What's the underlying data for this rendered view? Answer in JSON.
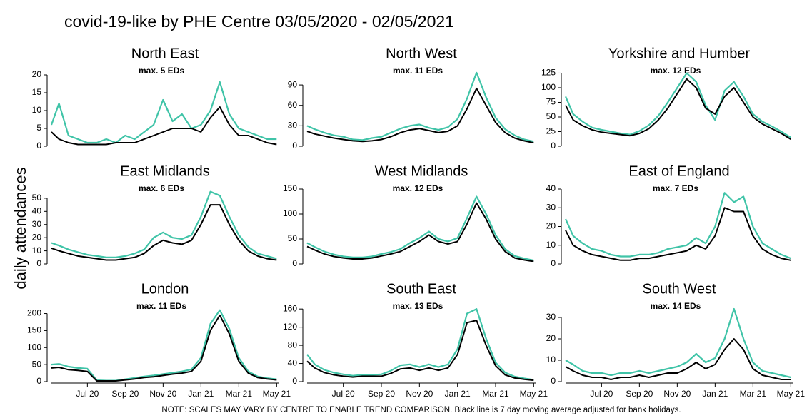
{
  "title": "covid-19-like by PHE Centre 03/05/2020 - 02/05/2021",
  "y_label": "daily attendances",
  "note": "NOTE: SCALES MAY VARY BY CENTRE TO ENABLE TREND COMPARISON. Black line is 7 day moving average adjusted for bank holidays.",
  "chart_data": [
    {
      "type": "line",
      "title": "North East",
      "annotation": "max. 5 EDs",
      "xlim": [
        5.1,
        17.1
      ],
      "ylim": [
        0,
        21
      ],
      "yticks": [
        0,
        5,
        10,
        15,
        20
      ],
      "x": [
        5.1,
        5.5,
        6,
        6.5,
        7,
        7.5,
        8,
        8.5,
        9,
        9.5,
        10,
        10.5,
        11,
        11.5,
        12,
        12.5,
        13,
        13.5,
        14,
        14.5,
        15,
        15.5,
        16,
        16.5,
        17
      ],
      "series": [
        {
          "color": "#40c4a8",
          "values": [
            6,
            12,
            3,
            2,
            1,
            1,
            2,
            1,
            3,
            2,
            4,
            6,
            13,
            7,
            9,
            5,
            6,
            10,
            18,
            9,
            5,
            4,
            3,
            2,
            2
          ]
        },
        {
          "color": "#000000",
          "values": [
            4,
            2,
            1,
            0.5,
            0.5,
            0.5,
            0.5,
            1,
            1,
            1,
            2,
            3,
            4,
            5,
            5,
            5,
            4,
            8,
            11,
            6,
            3,
            3,
            2,
            1,
            0.5
          ]
        }
      ]
    },
    {
      "type": "line",
      "title": "North West",
      "annotation": "max. 11 EDs",
      "xlim": [
        5.1,
        17.1
      ],
      "ylim": [
        0,
        110
      ],
      "yticks": [
        0,
        30,
        60,
        90
      ],
      "x": [
        5.1,
        5.5,
        6,
        6.5,
        7,
        7.5,
        8,
        8.5,
        9,
        9.5,
        10,
        10.5,
        11,
        11.5,
        12,
        12.5,
        13,
        13.5,
        14,
        14.5,
        15,
        15.5,
        16,
        16.5,
        17
      ],
      "series": [
        {
          "color": "#40c4a8",
          "values": [
            30,
            25,
            20,
            16,
            14,
            10,
            9,
            12,
            14,
            20,
            26,
            30,
            32,
            27,
            24,
            28,
            40,
            70,
            108,
            72,
            42,
            25,
            16,
            10,
            7
          ]
        },
        {
          "color": "#000000",
          "values": [
            22,
            18,
            15,
            12,
            10,
            8,
            7,
            8,
            10,
            14,
            20,
            24,
            26,
            23,
            20,
            22,
            30,
            55,
            85,
            60,
            35,
            20,
            12,
            8,
            5
          ]
        }
      ]
    },
    {
      "type": "line",
      "title": "Yorkshire and Humber",
      "annotation": "max. 12 EDs",
      "xlim": [
        5.1,
        17.1
      ],
      "ylim": [
        0,
        128
      ],
      "yticks": [
        0,
        25,
        50,
        75,
        100,
        125
      ],
      "x": [
        5.1,
        5.5,
        6,
        6.5,
        7,
        7.5,
        8,
        8.5,
        9,
        9.5,
        10,
        10.5,
        11,
        11.5,
        12,
        12.5,
        13,
        13.5,
        14,
        14.5,
        15,
        15.5,
        16,
        16.5,
        17
      ],
      "series": [
        {
          "color": "#40c4a8",
          "values": [
            85,
            55,
            42,
            32,
            28,
            25,
            22,
            20,
            26,
            36,
            52,
            75,
            100,
            125,
            110,
            70,
            45,
            95,
            110,
            85,
            55,
            42,
            34,
            25,
            15
          ]
        },
        {
          "color": "#000000",
          "values": [
            70,
            45,
            35,
            28,
            24,
            22,
            20,
            18,
            22,
            30,
            45,
            65,
            90,
            115,
            100,
            65,
            55,
            85,
            100,
            75,
            50,
            38,
            30,
            22,
            12
          ]
        }
      ]
    },
    {
      "type": "line",
      "title": "East Midlands",
      "annotation": "max. 6 EDs",
      "xlim": [
        5.1,
        17.1
      ],
      "ylim": [
        0,
        57
      ],
      "yticks": [
        0,
        10,
        20,
        30,
        40,
        50
      ],
      "x": [
        5.1,
        5.5,
        6,
        6.5,
        7,
        7.5,
        8,
        8.5,
        9,
        9.5,
        10,
        10.5,
        11,
        11.5,
        12,
        12.5,
        13,
        13.5,
        14,
        14.5,
        15,
        15.5,
        16,
        16.5,
        17
      ],
      "series": [
        {
          "color": "#40c4a8",
          "values": [
            16,
            14,
            11,
            9,
            7,
            6,
            5,
            5,
            6,
            8,
            11,
            20,
            24,
            20,
            19,
            22,
            36,
            55,
            52,
            36,
            22,
            13,
            8,
            6,
            4
          ]
        },
        {
          "color": "#000000",
          "values": [
            12,
            10,
            8,
            6,
            5,
            4,
            3,
            3,
            4,
            5,
            8,
            14,
            18,
            16,
            15,
            18,
            30,
            45,
            45,
            30,
            18,
            10,
            6,
            4,
            3
          ]
        }
      ]
    },
    {
      "type": "line",
      "title": "West Midlands",
      "annotation": "max. 12 EDs",
      "xlim": [
        5.1,
        17.1
      ],
      "ylim": [
        0,
        150
      ],
      "yticks": [
        0,
        50,
        100,
        150
      ],
      "x": [
        5.1,
        5.5,
        6,
        6.5,
        7,
        7.5,
        8,
        8.5,
        9,
        9.5,
        10,
        10.5,
        11,
        11.5,
        12,
        12.5,
        13,
        13.5,
        14,
        14.5,
        15,
        15.5,
        16,
        16.5,
        17
      ],
      "series": [
        {
          "color": "#40c4a8",
          "values": [
            42,
            34,
            25,
            19,
            15,
            13,
            13,
            15,
            20,
            24,
            30,
            42,
            52,
            65,
            50,
            45,
            52,
            92,
            135,
            100,
            58,
            30,
            16,
            11,
            7
          ]
        },
        {
          "color": "#000000",
          "values": [
            35,
            28,
            20,
            15,
            12,
            10,
            10,
            12,
            16,
            20,
            25,
            35,
            45,
            58,
            45,
            40,
            45,
            80,
            122,
            90,
            50,
            25,
            12,
            8,
            5
          ]
        }
      ]
    },
    {
      "type": "line",
      "title": "East of England",
      "annotation": "max. 7 EDs",
      "xlim": [
        5.1,
        17.1
      ],
      "ylim": [
        0,
        40
      ],
      "yticks": [
        0,
        10,
        20,
        30,
        40
      ],
      "x": [
        5.1,
        5.5,
        6,
        6.5,
        7,
        7.5,
        8,
        8.5,
        9,
        9.5,
        10,
        10.5,
        11,
        11.5,
        12,
        12.5,
        13,
        13.5,
        14,
        14.5,
        15,
        15.5,
        16,
        16.5,
        17
      ],
      "series": [
        {
          "color": "#40c4a8",
          "values": [
            24,
            15,
            11,
            8,
            7,
            5,
            4,
            4,
            5,
            5,
            6,
            8,
            9,
            10,
            14,
            11,
            20,
            38,
            33,
            36,
            20,
            11,
            8,
            5,
            3
          ]
        },
        {
          "color": "#000000",
          "values": [
            18,
            10,
            7,
            5,
            4,
            3,
            2,
            2,
            3,
            3,
            4,
            5,
            6,
            7,
            10,
            8,
            15,
            30,
            28,
            28,
            15,
            8,
            5,
            3,
            2
          ]
        }
      ]
    },
    {
      "type": "line",
      "title": "London",
      "annotation": "max. 11 EDs",
      "xlim": [
        5.1,
        17.1
      ],
      "ylim": [
        0,
        220
      ],
      "yticks": [
        0,
        50,
        100,
        150,
        200
      ],
      "xticks": [
        {
          "value": 7,
          "label": "Jul 20"
        },
        {
          "value": 9,
          "label": "Sep 20"
        },
        {
          "value": 11,
          "label": "Nov 20"
        },
        {
          "value": 13,
          "label": "Jan 21"
        },
        {
          "value": 15,
          "label": "Mar 21"
        },
        {
          "value": 17,
          "label": "May 21"
        }
      ],
      "x": [
        5.1,
        5.5,
        6,
        6.5,
        7,
        7.5,
        8,
        8.5,
        9,
        9.5,
        10,
        10.5,
        11,
        11.5,
        12,
        12.5,
        13,
        13.5,
        14,
        14.5,
        15,
        15.5,
        16,
        16.5,
        17
      ],
      "series": [
        {
          "color": "#40c4a8",
          "values": [
            50,
            52,
            44,
            40,
            38,
            4,
            3,
            3,
            7,
            11,
            15,
            18,
            22,
            26,
            30,
            36,
            70,
            170,
            210,
            155,
            70,
            30,
            15,
            10,
            7
          ]
        },
        {
          "color": "#000000",
          "values": [
            40,
            42,
            35,
            33,
            30,
            2,
            2,
            2,
            5,
            8,
            12,
            14,
            18,
            22,
            25,
            30,
            60,
            150,
            195,
            140,
            60,
            25,
            12,
            8,
            5
          ]
        }
      ]
    },
    {
      "type": "line",
      "title": "South East",
      "annotation": "max. 13 EDs",
      "xlim": [
        5.1,
        17.1
      ],
      "ylim": [
        0,
        165
      ],
      "yticks": [
        0,
        40,
        80,
        120,
        160
      ],
      "xticks": [
        {
          "value": 7,
          "label": "Jul 20"
        },
        {
          "value": 9,
          "label": "Sep 20"
        },
        {
          "value": 11,
          "label": "Nov 20"
        },
        {
          "value": 13,
          "label": "Jan 21"
        },
        {
          "value": 15,
          "label": "Mar 21"
        },
        {
          "value": 17,
          "label": "May 21"
        }
      ],
      "x": [
        5.1,
        5.5,
        6,
        6.5,
        7,
        7.5,
        8,
        8.5,
        9,
        9.5,
        10,
        10.5,
        11,
        11.5,
        12,
        12.5,
        13,
        13.5,
        14,
        14.5,
        15,
        15.5,
        16,
        16.5,
        17
      ],
      "series": [
        {
          "color": "#40c4a8",
          "values": [
            60,
            38,
            26,
            20,
            16,
            13,
            15,
            15,
            16,
            24,
            36,
            38,
            32,
            38,
            32,
            38,
            72,
            150,
            160,
            95,
            42,
            20,
            11,
            7,
            4
          ]
        },
        {
          "color": "#000000",
          "values": [
            45,
            30,
            20,
            15,
            12,
            10,
            12,
            12,
            12,
            18,
            28,
            30,
            25,
            30,
            25,
            30,
            60,
            130,
            135,
            80,
            35,
            15,
            8,
            5,
            3
          ]
        }
      ]
    },
    {
      "type": "line",
      "title": "South West",
      "annotation": "max. 14 EDs",
      "xlim": [
        5.1,
        17.1
      ],
      "ylim": [
        0,
        35
      ],
      "yticks": [
        0,
        10,
        20,
        30
      ],
      "xticks": [
        {
          "value": 7,
          "label": "Jul 20"
        },
        {
          "value": 9,
          "label": "Sep 20"
        },
        {
          "value": 11,
          "label": "Nov 20"
        },
        {
          "value": 13,
          "label": "Jan 21"
        },
        {
          "value": 15,
          "label": "Mar 21"
        },
        {
          "value": 17,
          "label": "May 21"
        }
      ],
      "x": [
        5.1,
        5.5,
        6,
        6.5,
        7,
        7.5,
        8,
        8.5,
        9,
        9.5,
        10,
        10.5,
        11,
        11.5,
        12,
        12.5,
        13,
        13.5,
        14,
        14.5,
        15,
        15.5,
        16,
        16.5,
        17
      ],
      "series": [
        {
          "color": "#40c4a8",
          "values": [
            10,
            8,
            5,
            4,
            4,
            3,
            4,
            4,
            5,
            4,
            5,
            6,
            7,
            9,
            13,
            9,
            11,
            20,
            34,
            20,
            9,
            5,
            4,
            3,
            2
          ]
        },
        {
          "color": "#000000",
          "values": [
            7,
            5,
            3,
            2,
            2,
            1,
            2,
            2,
            3,
            2,
            3,
            4,
            4,
            6,
            9,
            6,
            8,
            15,
            20,
            15,
            6,
            3,
            2,
            1,
            1
          ]
        }
      ]
    }
  ]
}
